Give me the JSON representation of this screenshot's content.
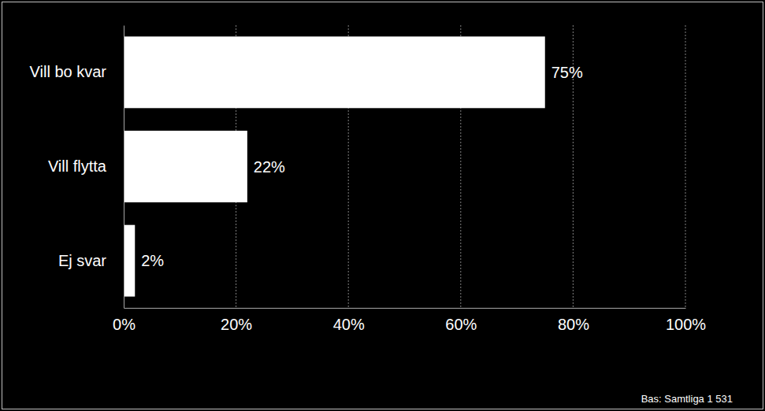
{
  "chart_data": {
    "type": "bar",
    "orientation": "horizontal",
    "categories": [
      "Vill bo kvar",
      "Vill flytta",
      "Ej svar"
    ],
    "values": [
      75,
      22,
      2
    ],
    "value_labels": [
      "75%",
      "22%",
      "2%"
    ],
    "color": "#ffffff",
    "xlim": [
      0,
      100
    ],
    "xticks": [
      {
        "value": 0,
        "label": "0%"
      },
      {
        "value": 20,
        "label": "20%"
      },
      {
        "value": 40,
        "label": "40%"
      },
      {
        "value": 60,
        "label": "60%"
      },
      {
        "value": 80,
        "label": "80%"
      },
      {
        "value": 100,
        "label": "100%"
      }
    ],
    "grid": true,
    "data_labels": true,
    "annotations": [
      "Bas: Samtliga 1 531"
    ]
  }
}
